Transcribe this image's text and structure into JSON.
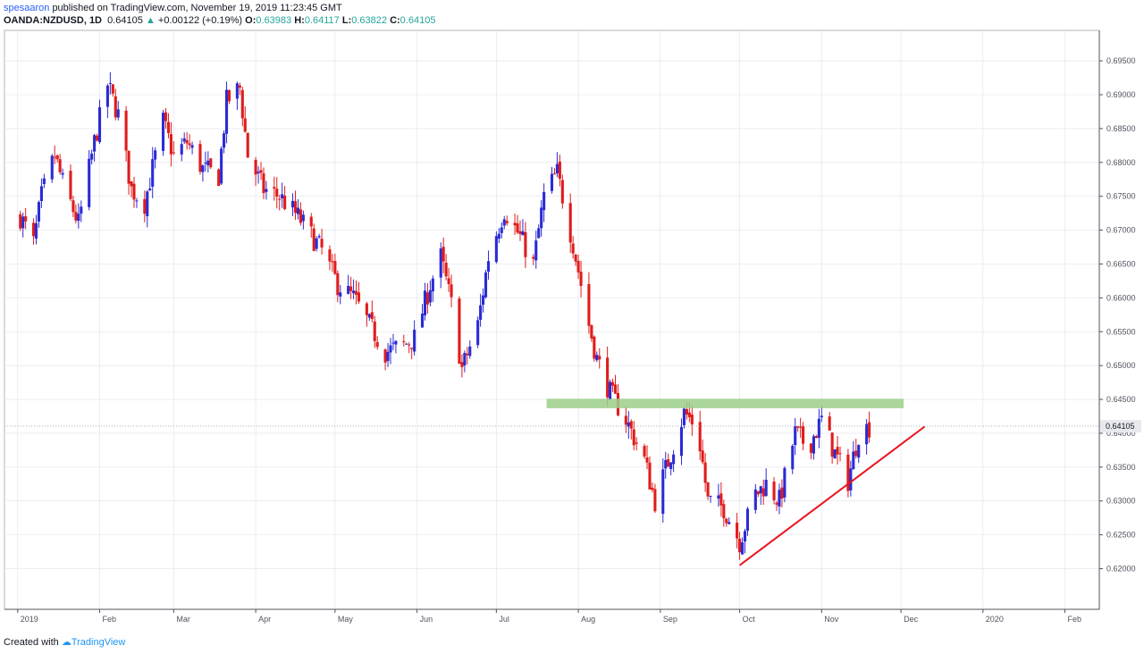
{
  "header": {
    "user": "spesaaron",
    "published": "published on TradingView.com, November 19, 2019 11:23:45 GMT",
    "symbol": "OANDA:NZDUSD, 1D",
    "last": "0.64105",
    "change": "+0.00122 (+0.19%)",
    "o_label": "O:",
    "o_value": "0.63983",
    "h_label": "H:",
    "h_value": "0.64117",
    "l_label": "L:",
    "l_value": "0.63822",
    "c_label": "C:",
    "c_value": "0.64105"
  },
  "footer": {
    "created_with": "Created with",
    "brand": "TradingView"
  },
  "colors": {
    "up": "#2b2bd6",
    "down": "#e01c1c",
    "zone": "#9ccf8a",
    "trendline": "#e8141b",
    "grid": "#e0e3eb"
  },
  "chart_data": {
    "type": "candlestick",
    "symbol": "OANDA:NZDUSD",
    "timeframe": "1D",
    "y_ticks": [
      "0.69500",
      "0.69000",
      "0.68500",
      "0.68000",
      "0.67500",
      "0.67000",
      "0.66500",
      "0.66000",
      "0.65500",
      "0.65000",
      "0.64500",
      "0.64000",
      "0.63500",
      "0.63000",
      "0.62500",
      "0.62000"
    ],
    "ylim": [
      0.614,
      0.6995
    ],
    "x_ticks": [
      {
        "label": "2019",
        "date": "2019-01-01"
      },
      {
        "label": "Feb",
        "date": "2019-02-01"
      },
      {
        "label": "Mar",
        "date": "2019-03-01"
      },
      {
        "label": "Apr",
        "date": "2019-04-01"
      },
      {
        "label": "May",
        "date": "2019-05-01"
      },
      {
        "label": "Jun",
        "date": "2019-06-01"
      },
      {
        "label": "Jul",
        "date": "2019-07-01"
      },
      {
        "label": "Aug",
        "date": "2019-08-01"
      },
      {
        "label": "Sep",
        "date": "2019-09-01"
      },
      {
        "label": "Oct",
        "date": "2019-10-01"
      },
      {
        "label": "Nov",
        "date": "2019-11-01"
      },
      {
        "label": "Dec",
        "date": "2019-12-01"
      },
      {
        "label": "2020",
        "date": "2020-01-01"
      },
      {
        "label": "Feb",
        "date": "2020-02-01"
      }
    ],
    "xlim": [
      "2018-12-27",
      "2020-02-14"
    ],
    "last_price": {
      "value": 0.64105,
      "label": "0.64105"
    },
    "resistance_zone": {
      "low": 0.6437,
      "high": 0.6451,
      "start": "2019-07-20",
      "end": "2019-12-02"
    },
    "trendline": {
      "start": {
        "date": "2019-10-01",
        "price": 0.6205
      },
      "end": {
        "date": "2019-12-10",
        "price": 0.641
      }
    },
    "price_path": [
      {
        "date": "2019-01-02",
        "close": 0.672
      },
      {
        "date": "2019-01-07",
        "close": 0.668
      },
      {
        "date": "2019-01-10",
        "close": 0.675
      },
      {
        "date": "2019-01-15",
        "close": 0.681
      },
      {
        "date": "2019-01-18",
        "close": 0.677
      },
      {
        "date": "2019-01-24",
        "close": 0.671
      },
      {
        "date": "2019-01-30",
        "close": 0.683
      },
      {
        "date": "2019-02-04",
        "close": 0.6915
      },
      {
        "date": "2019-02-08",
        "close": 0.687
      },
      {
        "date": "2019-02-13",
        "close": 0.676
      },
      {
        "date": "2019-02-18",
        "close": 0.674
      },
      {
        "date": "2019-02-25",
        "close": 0.686
      },
      {
        "date": "2019-03-01",
        "close": 0.681
      },
      {
        "date": "2019-03-06",
        "close": 0.683
      },
      {
        "date": "2019-03-12",
        "close": 0.679
      },
      {
        "date": "2019-03-18",
        "close": 0.678
      },
      {
        "date": "2019-03-21",
        "close": 0.689
      },
      {
        "date": "2019-03-26",
        "close": 0.691
      },
      {
        "date": "2019-03-29",
        "close": 0.681
      },
      {
        "date": "2019-04-04",
        "close": 0.676
      },
      {
        "date": "2019-04-10",
        "close": 0.675
      },
      {
        "date": "2019-04-17",
        "close": 0.672
      },
      {
        "date": "2019-04-26",
        "close": 0.667
      },
      {
        "date": "2019-05-02",
        "close": 0.662
      },
      {
        "date": "2019-05-08",
        "close": 0.66
      },
      {
        "date": "2019-05-14",
        "close": 0.656
      },
      {
        "date": "2019-05-20",
        "close": 0.652
      },
      {
        "date": "2019-05-27",
        "close": 0.653
      },
      {
        "date": "2019-05-31",
        "close": 0.654
      },
      {
        "date": "2019-06-06",
        "close": 0.662
      },
      {
        "date": "2019-06-10",
        "close": 0.666
      },
      {
        "date": "2019-06-14",
        "close": 0.659
      },
      {
        "date": "2019-06-18",
        "close": 0.6495
      },
      {
        "date": "2019-06-24",
        "close": 0.656
      },
      {
        "date": "2019-06-28",
        "close": 0.666
      },
      {
        "date": "2019-07-04",
        "close": 0.673
      },
      {
        "date": "2019-07-10",
        "close": 0.669
      },
      {
        "date": "2019-07-15",
        "close": 0.665
      },
      {
        "date": "2019-07-19",
        "close": 0.675
      },
      {
        "date": "2019-07-24",
        "close": 0.6785
      },
      {
        "date": "2019-07-30",
        "close": 0.668
      },
      {
        "date": "2019-08-05",
        "close": 0.656
      },
      {
        "date": "2019-08-08",
        "close": 0.651
      },
      {
        "date": "2019-08-13",
        "close": 0.646
      },
      {
        "date": "2019-08-19",
        "close": 0.642
      },
      {
        "date": "2019-08-26",
        "close": 0.636
      },
      {
        "date": "2019-08-30",
        "close": 0.63
      },
      {
        "date": "2019-09-05",
        "close": 0.637
      },
      {
        "date": "2019-09-10",
        "close": 0.643
      },
      {
        "date": "2019-09-15",
        "close": 0.641
      },
      {
        "date": "2019-09-19",
        "close": 0.63
      },
      {
        "date": "2019-09-25",
        "close": 0.629
      },
      {
        "date": "2019-10-01",
        "close": 0.624
      },
      {
        "date": "2019-10-07",
        "close": 0.631
      },
      {
        "date": "2019-10-11",
        "close": 0.6325
      },
      {
        "date": "2019-10-16",
        "close": 0.63
      },
      {
        "date": "2019-10-22",
        "close": 0.64
      },
      {
        "date": "2019-10-27",
        "close": 0.638
      },
      {
        "date": "2019-11-01",
        "close": 0.642
      },
      {
        "date": "2019-11-06",
        "close": 0.637
      },
      {
        "date": "2019-11-11",
        "close": 0.633
      },
      {
        "date": "2019-11-15",
        "close": 0.64
      },
      {
        "date": "2019-11-19",
        "close": 0.641
      }
    ]
  }
}
